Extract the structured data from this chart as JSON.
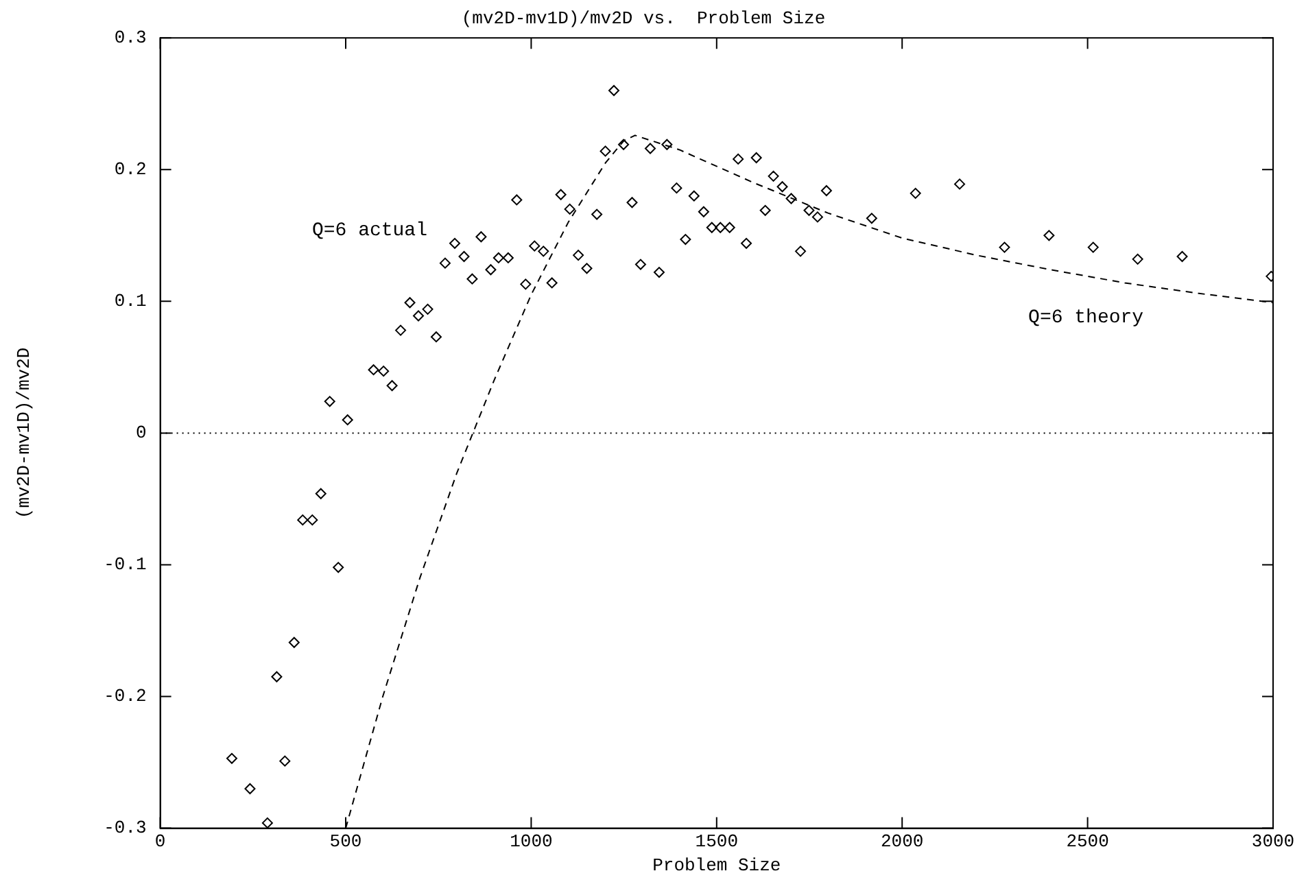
{
  "chart_data": {
    "type": "scatter",
    "title": "(mv2D-mv1D)/mv2D vs.  Problem Size",
    "xlabel": "Problem Size",
    "ylabel": "(mv2D-mv1D)/mv2D",
    "xlim": [
      0,
      3000
    ],
    "xticks": [
      0,
      500,
      1000,
      1500,
      2000,
      2500,
      3000
    ],
    "ylim": [
      -0.3,
      0.3
    ],
    "yticks": [
      -0.3,
      -0.2,
      -0.1,
      0,
      0.1,
      0.2,
      0.3
    ],
    "grid": false,
    "legend": false,
    "marker": "diamond",
    "ref_lines": [
      {
        "axis": "y",
        "value": 0,
        "line_style": "dotted",
        "color": "#000000"
      }
    ],
    "series": [
      {
        "name": "Q=6 actual",
        "color": "#000000",
        "x": [
          193,
          242,
          289,
          314,
          336,
          361,
          384,
          410,
          433,
          457,
          480,
          505,
          575,
          602,
          625,
          648,
          673,
          696,
          721,
          744,
          768,
          794,
          819,
          841,
          865,
          891,
          912,
          938,
          961,
          985,
          1009,
          1033,
          1056,
          1080,
          1104,
          1127,
          1150,
          1177,
          1200,
          1223,
          1249,
          1272,
          1295,
          1321,
          1345,
          1366,
          1392,
          1416,
          1439,
          1465,
          1487,
          1510,
          1535,
          1558,
          1580,
          1607,
          1631,
          1653,
          1677,
          1701,
          1726,
          1749,
          1772,
          1796,
          1918,
          2036,
          2155,
          2276,
          2396,
          2515,
          2635,
          2755,
          2995
        ],
        "values": [
          -0.247,
          -0.27,
          -0.296,
          -0.185,
          -0.249,
          -0.159,
          -0.066,
          -0.066,
          -0.046,
          0.024,
          -0.102,
          0.01,
          0.048,
          0.047,
          0.036,
          0.078,
          0.099,
          0.089,
          0.094,
          0.073,
          0.129,
          0.144,
          0.134,
          0.117,
          0.149,
          0.124,
          0.133,
          0.133,
          0.177,
          0.113,
          0.142,
          0.138,
          0.114,
          0.181,
          0.17,
          0.135,
          0.125,
          0.166,
          0.214,
          0.26,
          0.219,
          0.175,
          0.128,
          0.216,
          0.122,
          0.219,
          0.186,
          0.147,
          0.18,
          0.168,
          0.156,
          0.156,
          0.156,
          0.208,
          0.144,
          0.209,
          0.169,
          0.195,
          0.187,
          0.178,
          0.138,
          0.169,
          0.164,
          0.184,
          0.163,
          0.182,
          0.189,
          0.141,
          0.15,
          0.141,
          0.132,
          0.134,
          0.119
        ]
      },
      {
        "name": "Q=6 theory",
        "type": "line",
        "color": "#000000",
        "line_style": "dashed",
        "marker": "none",
        "x": [
          500,
          600,
          700,
          800,
          900,
          1000,
          1100,
          1200,
          1250,
          1280,
          1400,
          1600,
          1800,
          2000,
          2200,
          2400,
          2600,
          2800,
          3000
        ],
        "values": [
          -0.3,
          -0.2,
          -0.11,
          -0.03,
          0.04,
          0.105,
          0.16,
          0.205,
          0.222,
          0.226,
          0.215,
          0.19,
          0.167,
          0.148,
          0.135,
          0.124,
          0.114,
          0.106,
          0.099
        ]
      }
    ]
  }
}
